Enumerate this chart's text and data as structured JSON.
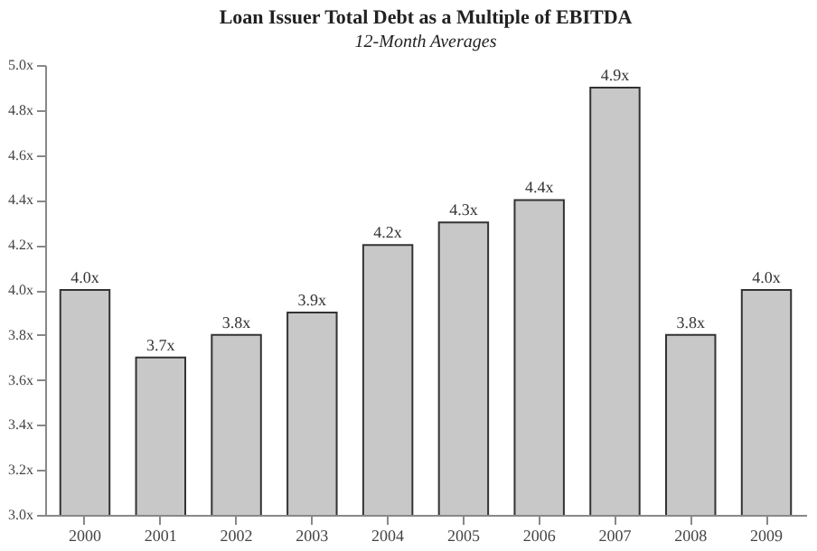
{
  "chart_data": {
    "type": "bar",
    "title": "Loan Issuer Total Debt as a Multiple of EBITDA",
    "subtitle": "12-Month Averages",
    "categories": [
      "2000",
      "2001",
      "2002",
      "2003",
      "2004",
      "2005",
      "2006",
      "2007",
      "2008",
      "2009"
    ],
    "values": [
      4.0,
      3.7,
      3.8,
      3.9,
      4.2,
      4.3,
      4.4,
      4.9,
      3.8,
      4.0
    ],
    "value_labels": [
      "4.0x",
      "3.7x",
      "3.8x",
      "3.9x",
      "4.2x",
      "4.3x",
      "4.4x",
      "4.9x",
      "3.8x",
      "4.0x"
    ],
    "color": "#c8c8c8",
    "ylim": [
      3.0,
      5.0
    ],
    "yticks": [
      {
        "value": 3.0,
        "label": "3.0x"
      },
      {
        "value": 3.2,
        "label": "3.2x"
      },
      {
        "value": 3.4,
        "label": "3.4x"
      },
      {
        "value": 3.6,
        "label": "3.6x"
      },
      {
        "value": 3.8,
        "label": "3.8x"
      },
      {
        "value": 4.0,
        "label": "4.0x"
      },
      {
        "value": 4.2,
        "label": "4.2x"
      },
      {
        "value": 4.4,
        "label": "4.4x"
      },
      {
        "value": 4.6,
        "label": "4.6x"
      },
      {
        "value": 4.8,
        "label": "4.8x"
      },
      {
        "value": 5.0,
        "label": "5.0x"
      }
    ],
    "grid": false
  }
}
